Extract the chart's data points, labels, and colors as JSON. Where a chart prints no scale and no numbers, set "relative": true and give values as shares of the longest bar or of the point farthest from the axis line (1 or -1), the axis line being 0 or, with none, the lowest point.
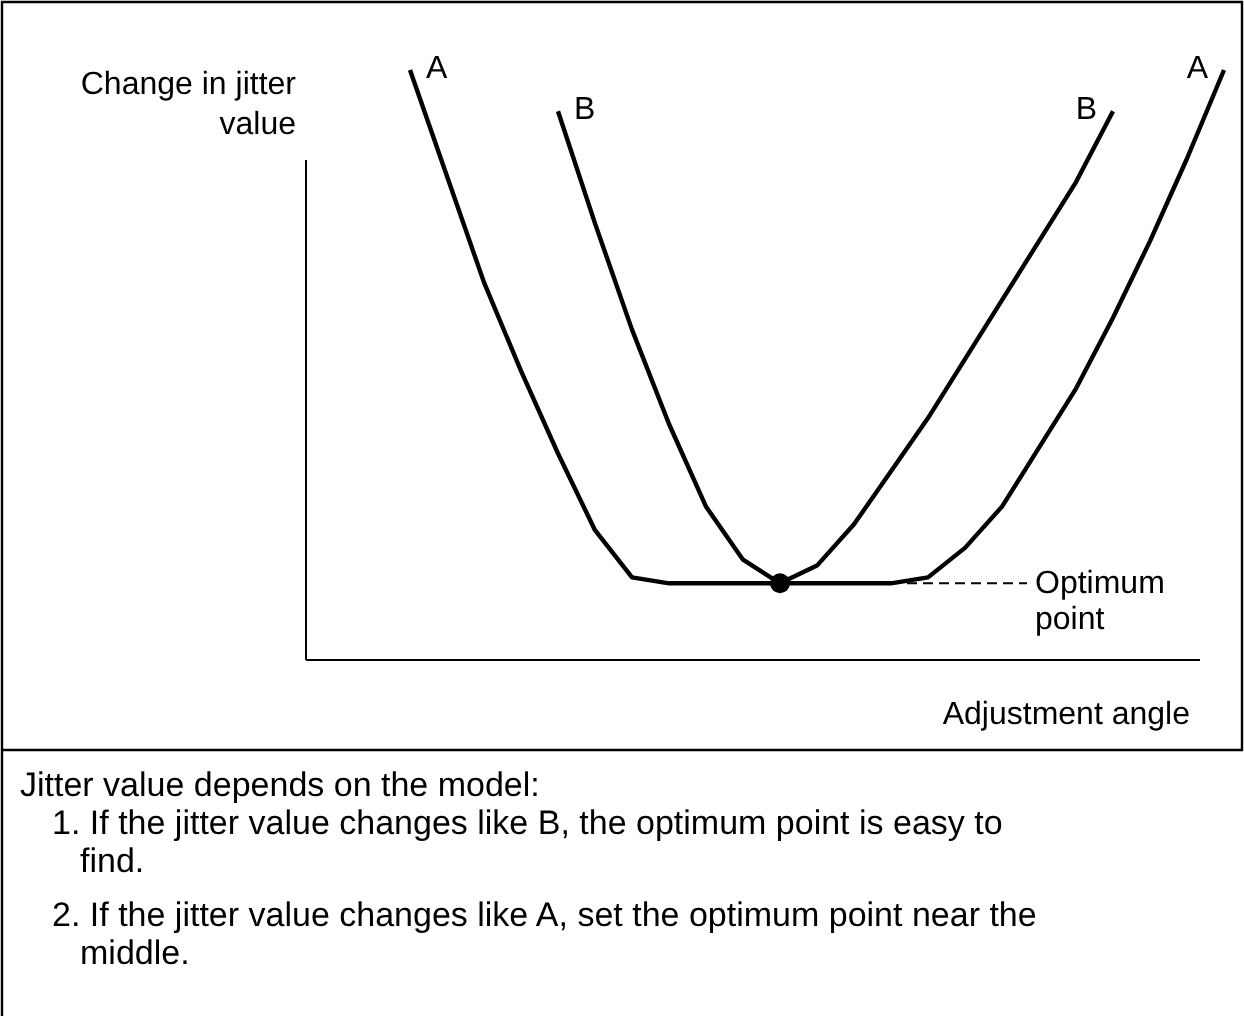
{
  "chart_data": {
    "type": "line",
    "relative": true,
    "xlabel": "Adjustment angle",
    "ylabel": "Change in jitter value",
    "categories": [
      null,
      null,
      null,
      null,
      null,
      null,
      null,
      null,
      null,
      null,
      null,
      null,
      null,
      null,
      null,
      null,
      null,
      null,
      null,
      null,
      null,
      null,
      null
    ],
    "series": [
      {
        "name": "A",
        "color": "#000000",
        "values": [
          1.0,
          0.82,
          0.64,
          0.49,
          0.35,
          0.22,
          0.14,
          0.13,
          0.13,
          0.13,
          0.13,
          0.13,
          0.13,
          0.13,
          0.14,
          0.19,
          0.26,
          0.36,
          0.46,
          0.58,
          0.71,
          0.85,
          1.0
        ]
      },
      {
        "name": "B",
        "color": "#000000",
        "values": [
          null,
          null,
          null,
          null,
          0.93,
          0.74,
          0.56,
          0.4,
          0.26,
          0.17,
          0.13,
          0.16,
          0.23,
          0.32,
          0.41,
          0.51,
          0.61,
          0.71,
          0.81,
          0.93,
          null,
          null,
          null
        ]
      }
    ],
    "marker": "none",
    "annotations": [
      "Optimum point",
      "Jitter value depends on the model:",
      "1. If the jitter value changes like B, the optimum point is easy to find.",
      "2. If the jitter value changes like A, set the optimum point near the middle."
    ]
  }
}
